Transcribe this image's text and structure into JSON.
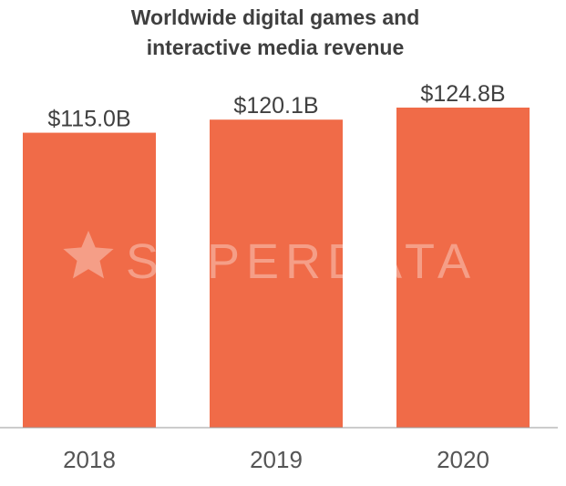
{
  "colors": {
    "bar": "#f06b48",
    "baseline": "#9a9a9a"
  },
  "watermark": {
    "text": "SUPERDATA",
    "icon": "star-icon"
  },
  "chart_data": {
    "type": "bar",
    "title": "Worldwide digital games and interactive media revenue",
    "title_lines": [
      "Worldwide digital games and",
      "interactive media revenue"
    ],
    "categories": [
      "2018",
      "2019",
      "2020"
    ],
    "values": [
      115.0,
      120.1,
      124.8
    ],
    "value_labels": [
      "$115.0B",
      "$120.1B",
      "$124.8B"
    ],
    "unit": "USD billions",
    "xlabel": "",
    "ylabel": "",
    "ylim": [
      0,
      124.8
    ],
    "grid": false,
    "legend": "none"
  }
}
